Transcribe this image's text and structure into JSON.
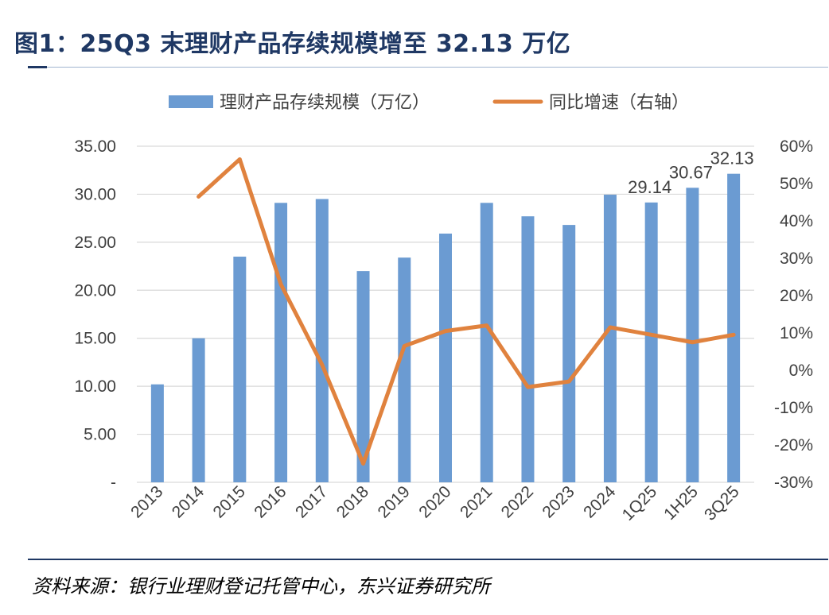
{
  "figure": {
    "title": "图1：25Q3 末理财产品存续规模增至 32.13 万亿",
    "source": "资料来源：银行业理财登记托管中心，东兴证券研究所"
  },
  "colors": {
    "title": "#1f3864",
    "bar": "#6b9bd2",
    "line": "#e0823e",
    "grid": "#d9d9d9",
    "axis_text": "#404040"
  },
  "chart_data": {
    "type": "bar+line",
    "categories": [
      "2013",
      "2014",
      "2015",
      "2016",
      "2017",
      "2018",
      "2019",
      "2020",
      "2021",
      "2022",
      "2023",
      "2024",
      "1Q25",
      "1H25",
      "3Q25"
    ],
    "series": [
      {
        "name": "理财产品存续规模（万亿）",
        "type": "bar",
        "axis": "left",
        "values": [
          10.2,
          15.0,
          23.5,
          29.1,
          29.5,
          22.0,
          23.4,
          25.9,
          29.1,
          27.7,
          26.8,
          29.95,
          29.14,
          30.67,
          32.13
        ]
      },
      {
        "name": "同比增速（右轴）",
        "type": "line",
        "axis": "right",
        "values": [
          null,
          46.5,
          56.5,
          23.0,
          1.5,
          -25.0,
          6.5,
          10.5,
          12.0,
          -4.5,
          -3.0,
          11.5,
          9.5,
          7.5,
          9.5
        ]
      }
    ],
    "data_labels": [
      {
        "category": "1Q25",
        "text": "29.14"
      },
      {
        "category": "1H25",
        "text": "30.67"
      },
      {
        "category": "3Q25",
        "text": "32.13"
      }
    ],
    "y_left": {
      "min": 0,
      "max": 35,
      "ticks": [
        "-",
        "5.00",
        "10.00",
        "15.00",
        "20.00",
        "25.00",
        "30.00",
        "35.00"
      ]
    },
    "y_right": {
      "min": -30,
      "max": 60,
      "ticks": [
        "-30%",
        "-20%",
        "-10%",
        "0%",
        "10%",
        "20%",
        "30%",
        "40%",
        "50%",
        "60%"
      ]
    },
    "grid": true,
    "legend": "top"
  }
}
